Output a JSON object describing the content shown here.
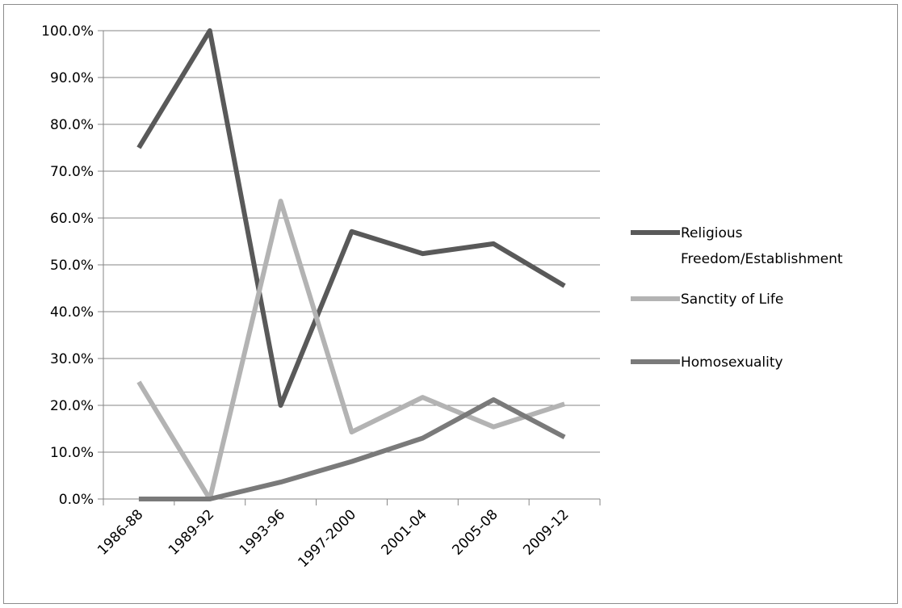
{
  "chart_data": {
    "type": "line",
    "categories": [
      "1986-88",
      "1989-92",
      "1993-96",
      "1997-2000",
      "2001-04",
      "2005-08",
      "2009-12"
    ],
    "ylim": [
      0,
      100
    ],
    "y_ticks": [
      "0.0%",
      "10.0%",
      "20.0%",
      "30.0%",
      "40.0%",
      "50.0%",
      "60.0%",
      "70.0%",
      "80.0%",
      "90.0%",
      "100.0%"
    ],
    "y_tick_values": [
      0,
      10,
      20,
      30,
      40,
      50,
      60,
      70,
      80,
      90,
      100
    ],
    "grid": true,
    "legend_position": "right",
    "series": [
      {
        "name": "Religious Freedom/Establishment",
        "name_lines": [
          "Religious",
          "Freedom/Establishment"
        ],
        "color": "#595959",
        "values": [
          75.0,
          100.0,
          20.0,
          57.1,
          52.4,
          54.5,
          45.5
        ]
      },
      {
        "name": "Sanctity of Life",
        "name_lines": [
          "Sanctity of Life"
        ],
        "color": "#b3b3b3",
        "values": [
          25.0,
          0.0,
          63.6,
          14.3,
          21.7,
          15.4,
          20.3
        ]
      },
      {
        "name": "Homosexuality",
        "name_lines": [
          "Homosexuality"
        ],
        "color": "#7a7a7a",
        "values": [
          0.0,
          0.0,
          3.6,
          8.0,
          13.0,
          21.2,
          13.2
        ]
      }
    ]
  }
}
